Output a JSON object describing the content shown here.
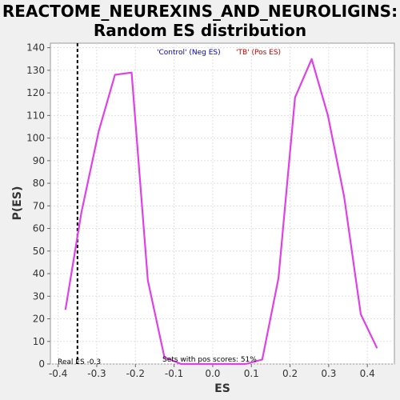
{
  "chart_data": {
    "type": "line",
    "title_line1": "REACTOME_NEUREXINS_AND_NEUROLIGINS:",
    "title_line2": "Random ES distribution",
    "xlabel": "ES",
    "ylabel": "P(ES)",
    "xlim": [
      -0.42,
      0.47
    ],
    "ylim": [
      0,
      142
    ],
    "xticks": [
      -0.4,
      -0.3,
      -0.2,
      -0.1,
      0.0,
      0.1,
      0.2,
      0.3,
      0.4
    ],
    "xtick_labels": [
      "-0.4",
      "-0.3",
      "-0.2",
      "-0.1",
      "0.0",
      "0.1",
      "0.2",
      "0.3",
      "0.4"
    ],
    "yticks": [
      0,
      10,
      20,
      30,
      40,
      50,
      60,
      70,
      80,
      90,
      100,
      110,
      120,
      130,
      140
    ],
    "ytick_labels": [
      "0",
      "10",
      "20",
      "30",
      "40",
      "50",
      "60",
      "70",
      "80",
      "90",
      "100",
      "110",
      "120",
      "130",
      "140"
    ],
    "legend": [
      {
        "label": "'Control' (Neg ES)",
        "color": "#0000cc"
      },
      {
        "label": "'TB' (Pos ES)",
        "color": "#cc0000"
      }
    ],
    "legend_position": "top-center",
    "series": [
      {
        "color": "#e040e8",
        "x": [
          -0.381,
          -0.34,
          -0.295,
          -0.253,
          -0.21,
          -0.168,
          -0.125,
          -0.082,
          0.0,
          0.085,
          0.128,
          0.17,
          0.213,
          0.256,
          0.298,
          0.34,
          0.383,
          0.425
        ],
        "y": [
          24,
          67,
          103,
          128,
          129,
          37,
          3,
          0,
          0,
          0,
          2,
          38,
          118,
          135,
          110,
          74,
          22,
          7
        ]
      }
    ],
    "real_es": -0.35,
    "real_es_label": "Real ES -0.3",
    "annotation": "Sets with pos scores: 51%",
    "grid": true
  }
}
